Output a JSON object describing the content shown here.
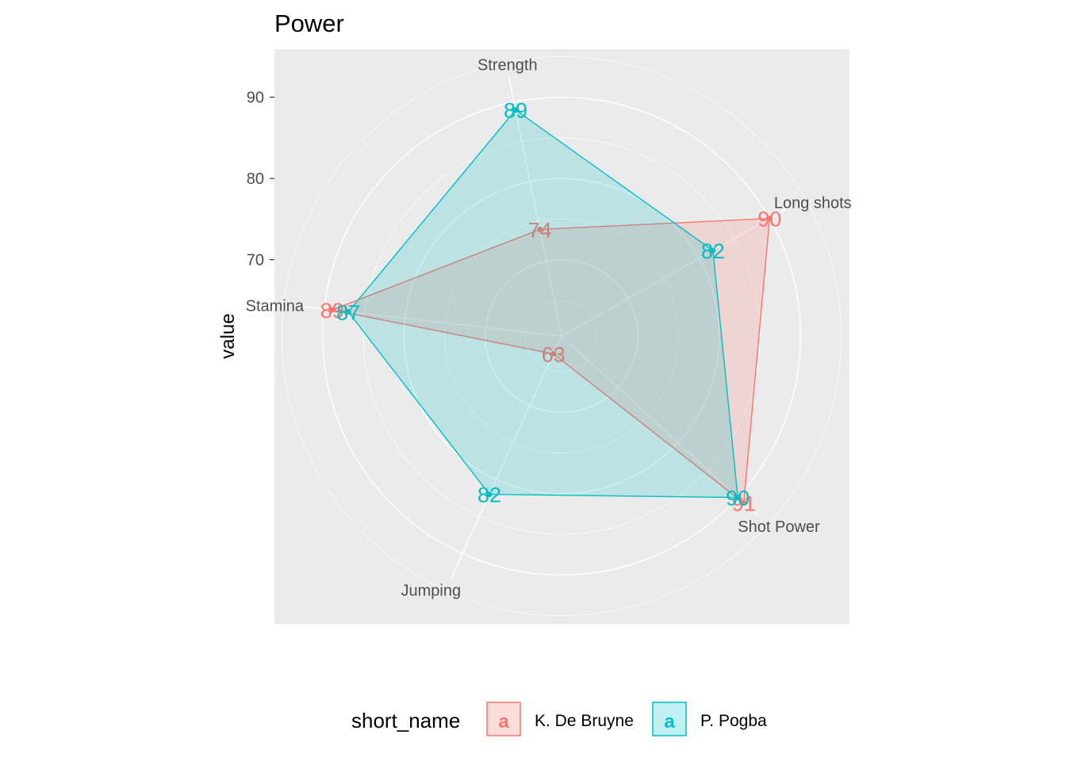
{
  "chart_data": {
    "type": "radar",
    "title": "Power",
    "ylabel": "value",
    "y_ticks": [
      70,
      80,
      90
    ],
    "axes": [
      "Strength",
      "Long shots",
      "Shot Power",
      "Jumping",
      "Stamina"
    ],
    "series": [
      {
        "name": "K. De Bruyne",
        "color": "#F8766D",
        "values": [
          74,
          90,
          91,
          63,
          89
        ]
      },
      {
        "name": "P. Pogba",
        "color": "#00BFC4",
        "values": [
          89,
          82,
          90,
          82,
          87
        ]
      }
    ],
    "legend": {
      "title": "short_name",
      "position": "bottom",
      "key_glyph": "a"
    },
    "grid": true
  }
}
